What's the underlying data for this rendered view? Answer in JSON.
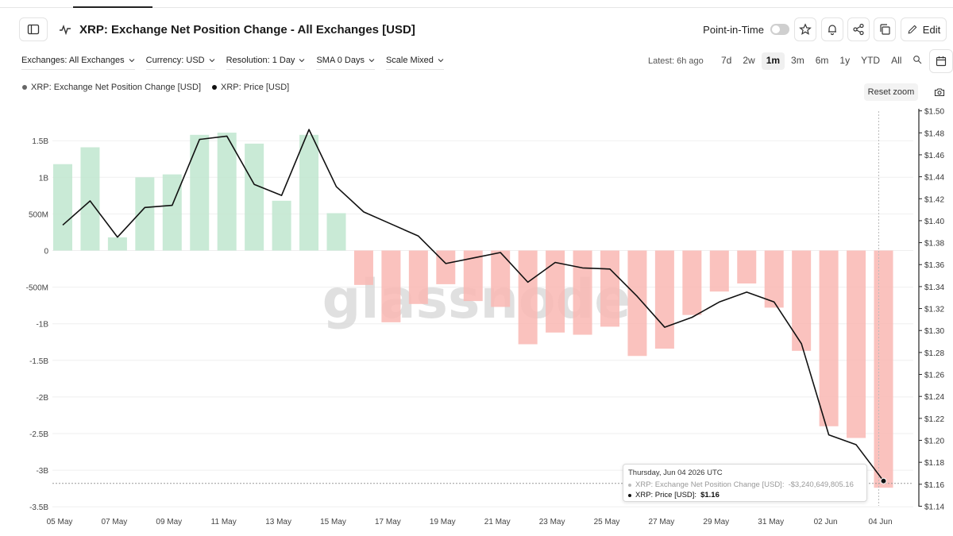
{
  "header": {
    "title": "XRP: Exchange Net Position Change - All Exchanges [USD]",
    "point_in_time_label": "Point-in-Time",
    "edit_label": "Edit"
  },
  "filters": [
    {
      "label": "Exchanges: All Exchanges"
    },
    {
      "label": "Currency: USD"
    },
    {
      "label": "Resolution: 1 Day"
    },
    {
      "label": "SMA 0 Days"
    },
    {
      "label": "Scale Mixed"
    }
  ],
  "latest": "Latest: 6h ago",
  "ranges": [
    "7d",
    "2w",
    "1m",
    "3m",
    "6m",
    "1y",
    "YTD",
    "All"
  ],
  "active_range": "1m",
  "reset_zoom_label": "Reset zoom",
  "watermark": "glassnode",
  "colors": {
    "positive_bar": "#bfe6cf",
    "negative_bar": "#f9b7b3",
    "price_line": "#111111",
    "legend_netpos": "#666666",
    "legend_price": "#111111"
  },
  "tooltip": {
    "date": "Thursday, Jun 04 2026 UTC",
    "netpos_label": "XRP: Exchange Net Position Change [USD]:",
    "netpos_value": "-$3,240,649,805.16",
    "price_label": "XRP: Price [USD]:",
    "price_value": "$1.16"
  },
  "chart_data": {
    "type": "bar",
    "title": "XRP: Exchange Net Position Change - All Exchanges [USD]",
    "x_tick_labels": [
      "05 May",
      "07 May",
      "09 May",
      "11 May",
      "13 May",
      "15 May",
      "17 May",
      "19 May",
      "21 May",
      "23 May",
      "25 May",
      "27 May",
      "29 May",
      "31 May",
      "02 Jun",
      "04 Jun"
    ],
    "categories": [
      "05 May",
      "06 May",
      "07 May",
      "08 May",
      "09 May",
      "10 May",
      "11 May",
      "12 May",
      "13 May",
      "14 May",
      "15 May",
      "16 May",
      "17 May",
      "18 May",
      "19 May",
      "20 May",
      "21 May",
      "22 May",
      "23 May",
      "24 May",
      "25 May",
      "26 May",
      "27 May",
      "28 May",
      "29 May",
      "30 May",
      "31 May",
      "01 Jun",
      "02 Jun",
      "03 Jun",
      "04 Jun"
    ],
    "y_left": {
      "ticks": [
        1.5,
        1,
        0.5,
        0,
        -0.5,
        -1,
        -1.5,
        -2,
        -2.5,
        -3,
        -3.5
      ],
      "tick_labels": [
        "1.5B",
        "1B",
        "500M",
        "0",
        "-500M",
        "-1B",
        "-1.5B",
        "-2B",
        "-2.5B",
        "-3B",
        "-3.5B"
      ],
      "range": [
        -3.5,
        1.85
      ],
      "unit": "B USD"
    },
    "y_right": {
      "ticks": [
        1.14,
        1.16,
        1.18,
        1.2,
        1.22,
        1.24,
        1.26,
        1.28,
        1.3,
        1.32,
        1.34,
        1.36,
        1.38,
        1.4,
        1.42,
        1.44,
        1.46,
        1.48,
        1.5
      ],
      "tick_labels": [
        "$1.14",
        "$1.16",
        "$1.18",
        "$1.20",
        "$1.22",
        "$1.24",
        "$1.26",
        "$1.28",
        "$1.30",
        "$1.32",
        "$1.34",
        "$1.36",
        "$1.38",
        "$1.40",
        "$1.42",
        "$1.44",
        "$1.46",
        "$1.48",
        "$1.50"
      ],
      "range": [
        1.14,
        1.5
      ]
    },
    "grid": true,
    "legend": "top-left",
    "series": [
      {
        "name": "XRP: Exchange Net Position Change [USD]",
        "type": "bar",
        "values": [
          1.18,
          1.41,
          0.18,
          1.0,
          1.04,
          1.58,
          1.61,
          1.46,
          0.68,
          1.58,
          0.51,
          -0.47,
          -0.98,
          -0.73,
          -0.46,
          -0.69,
          -0.77,
          -1.28,
          -1.12,
          -1.15,
          -1.04,
          -1.44,
          -1.34,
          -0.88,
          -0.56,
          -0.45,
          -0.78,
          -1.37,
          -2.4,
          -2.56,
          -3.24
        ]
      },
      {
        "name": "XRP: Price [USD]",
        "type": "line",
        "values": [
          1.396,
          1.418,
          1.385,
          1.412,
          1.414,
          1.474,
          1.477,
          1.433,
          1.423,
          1.483,
          1.431,
          1.408,
          1.397,
          1.386,
          1.361,
          1.366,
          1.371,
          1.344,
          1.362,
          1.357,
          1.356,
          1.331,
          1.303,
          1.312,
          1.326,
          1.335,
          1.326,
          1.288,
          1.205,
          1.196,
          1.163
        ]
      }
    ]
  }
}
